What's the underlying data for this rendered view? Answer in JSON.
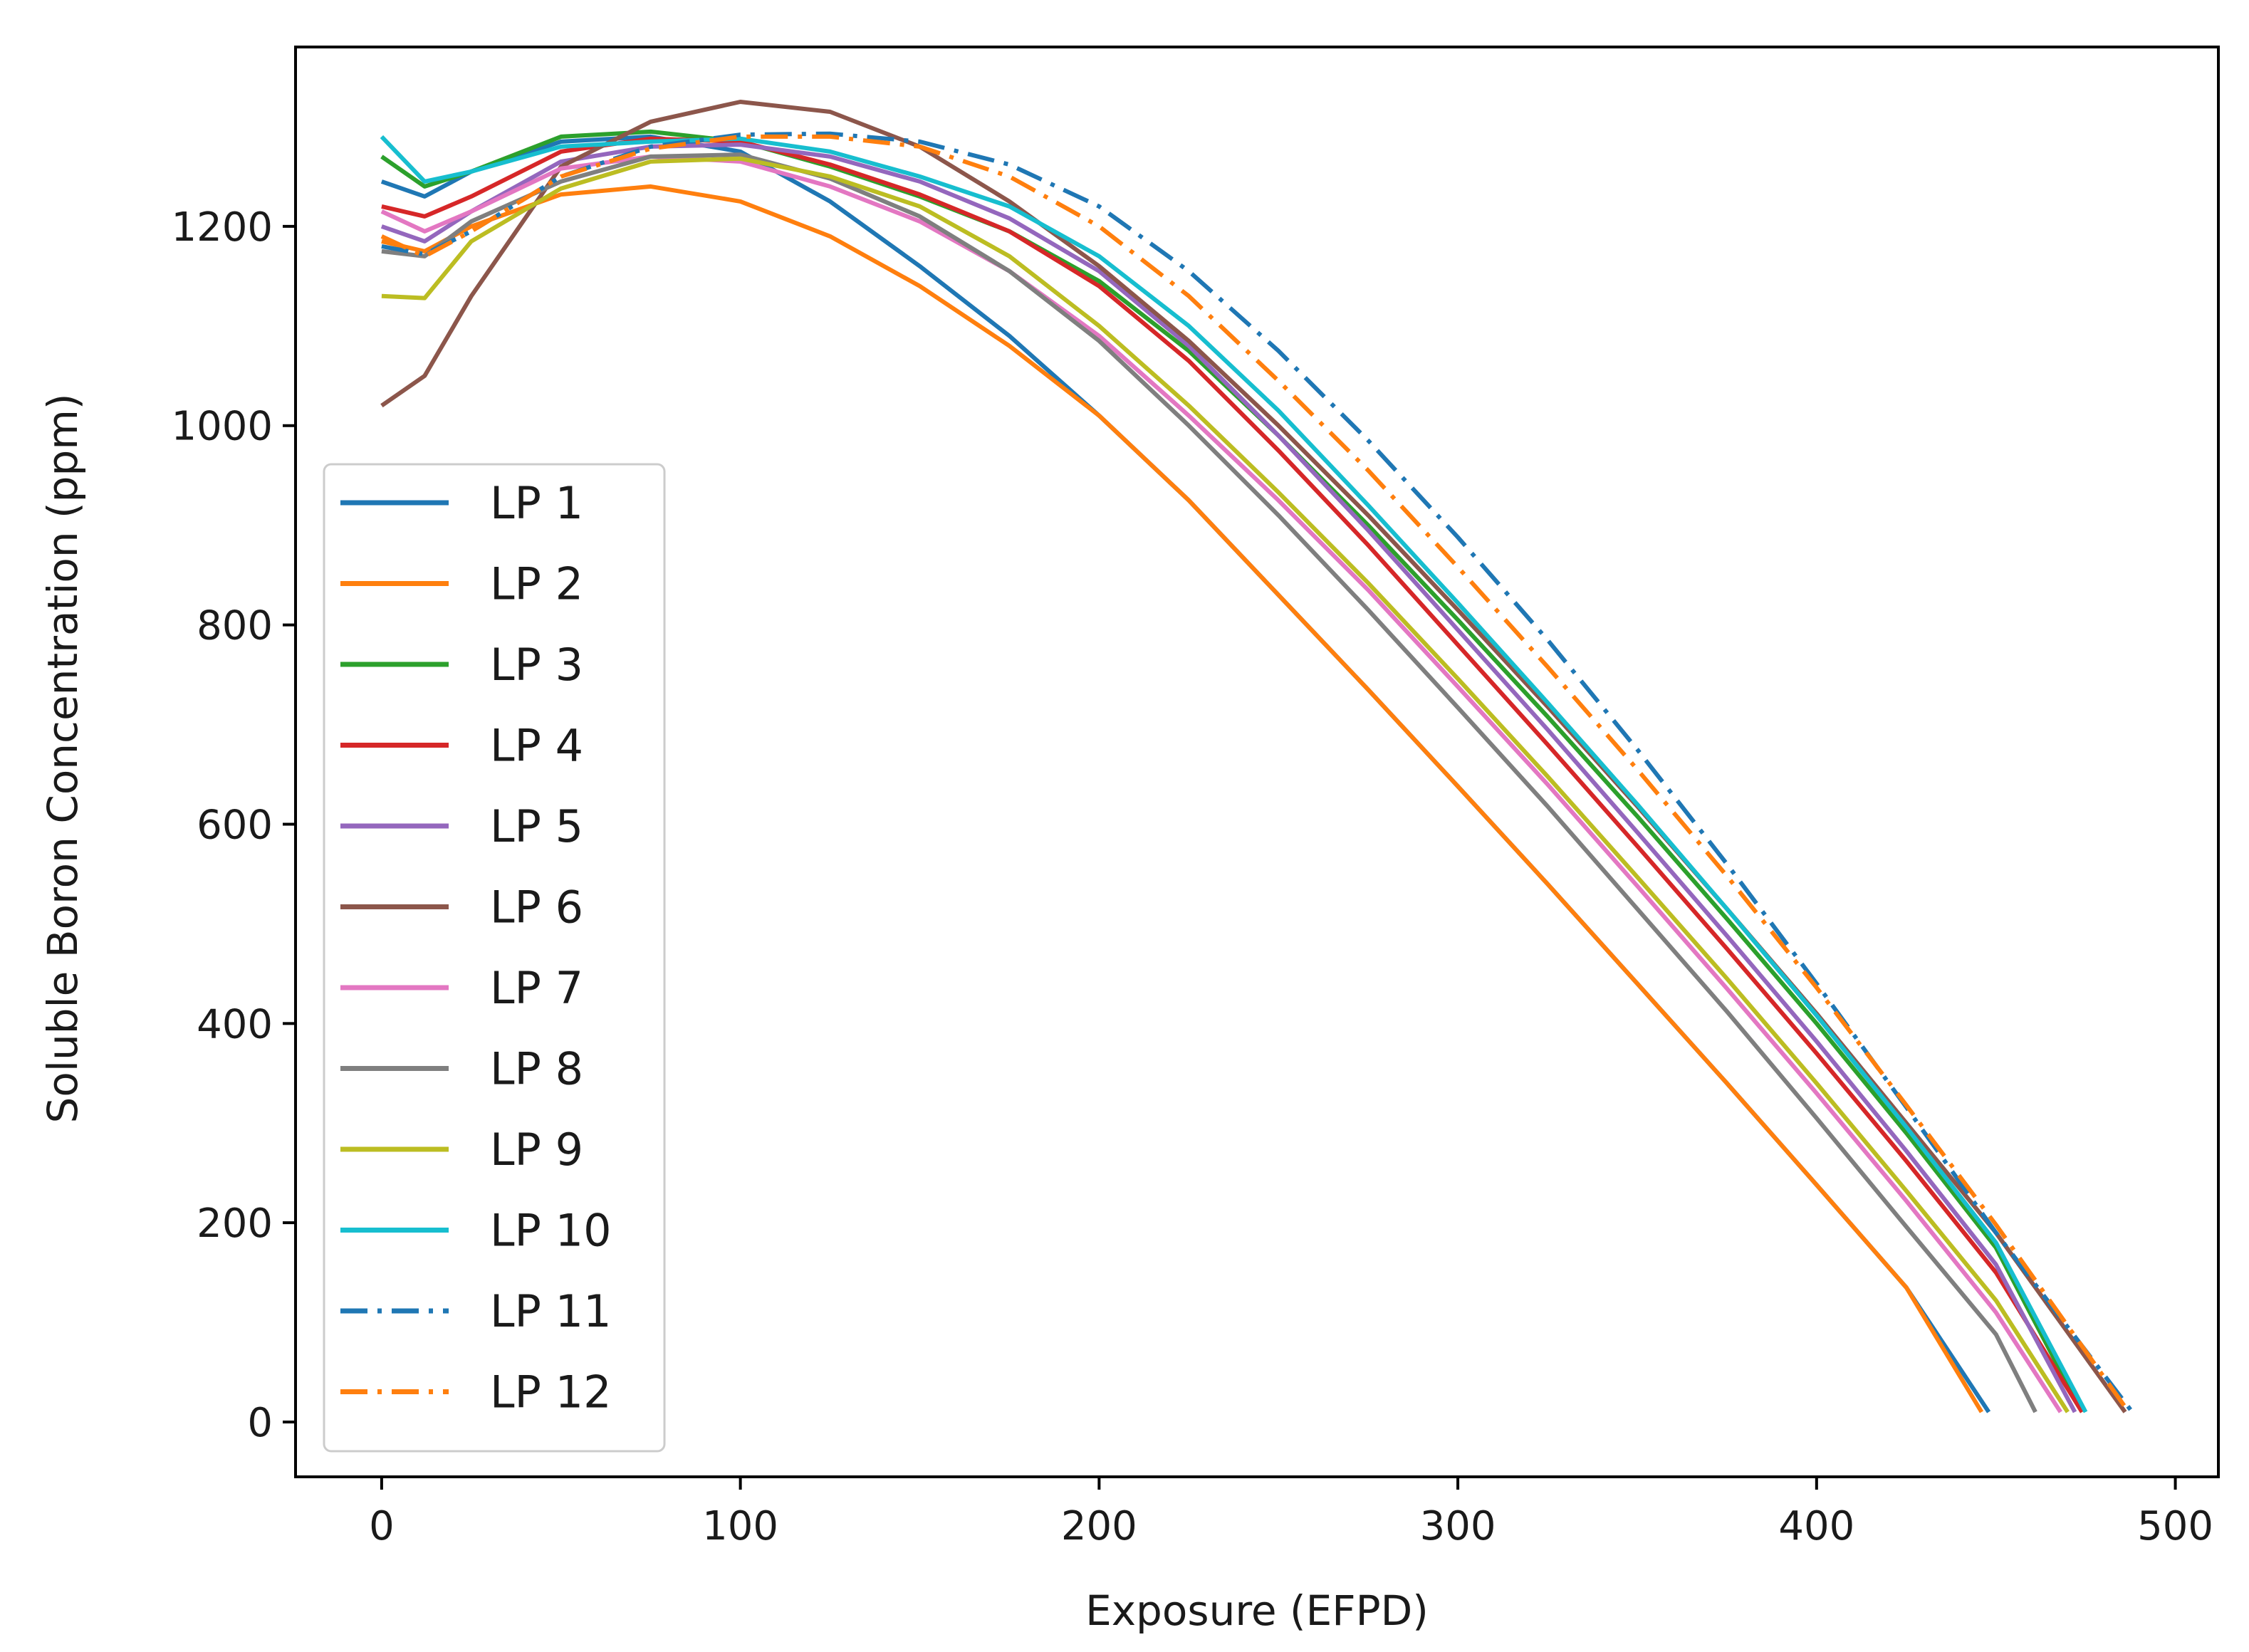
{
  "chart_data": {
    "type": "line",
    "title": "",
    "xlabel": "Exposure (EFPD)",
    "ylabel": "Soluble Boron Concentration (ppm)",
    "xlim": [
      -24,
      512
    ],
    "ylim": [
      -55,
      1380
    ],
    "xticks": [
      0,
      100,
      200,
      300,
      400,
      500
    ],
    "yticks": [
      0,
      200,
      400,
      600,
      800,
      1000,
      1200
    ],
    "grid": false,
    "legend_position": "lower-left",
    "series": [
      {
        "name": "LP 1",
        "color": "#1f77b4",
        "style": "solid",
        "x": [
          0,
          12,
          25,
          50,
          75,
          100,
          125,
          150,
          175,
          200,
          225,
          250,
          275,
          300,
          325,
          350,
          375,
          400,
          425,
          448
        ],
        "y": [
          1245,
          1230,
          1255,
          1285,
          1290,
          1275,
          1225,
          1160,
          1090,
          1010,
          925,
          830,
          735,
          638,
          540,
          440,
          340,
          238,
          135,
          10
        ]
      },
      {
        "name": "LP 2",
        "color": "#ff7f0e",
        "style": "solid",
        "x": [
          0,
          12,
          25,
          50,
          75,
          100,
          125,
          150,
          175,
          200,
          225,
          250,
          275,
          300,
          325,
          350,
          375,
          400,
          425,
          446
        ],
        "y": [
          1185,
          1175,
          1200,
          1232,
          1240,
          1225,
          1190,
          1140,
          1080,
          1010,
          925,
          830,
          735,
          638,
          540,
          440,
          340,
          238,
          135,
          10
        ]
      },
      {
        "name": "LP 3",
        "color": "#2ca02c",
        "style": "solid",
        "x": [
          0,
          12,
          25,
          50,
          75,
          100,
          125,
          150,
          175,
          200,
          225,
          250,
          275,
          300,
          325,
          350,
          375,
          400,
          425,
          450,
          474
        ],
        "y": [
          1270,
          1240,
          1255,
          1290,
          1295,
          1285,
          1260,
          1230,
          1195,
          1145,
          1075,
          990,
          900,
          805,
          708,
          608,
          505,
          400,
          290,
          175,
          10
        ]
      },
      {
        "name": "LP 4",
        "color": "#d62728",
        "style": "solid",
        "x": [
          0,
          12,
          25,
          50,
          75,
          100,
          125,
          150,
          175,
          200,
          225,
          250,
          275,
          300,
          325,
          350,
          375,
          400,
          425,
          450,
          474
        ],
        "y": [
          1220,
          1210,
          1230,
          1275,
          1288,
          1285,
          1262,
          1232,
          1195,
          1140,
          1065,
          975,
          880,
          780,
          680,
          578,
          475,
          370,
          262,
          150,
          10
        ]
      },
      {
        "name": "LP 5",
        "color": "#9467bd",
        "style": "solid",
        "x": [
          0,
          12,
          25,
          50,
          75,
          100,
          125,
          150,
          175,
          200,
          225,
          250,
          275,
          300,
          325,
          350,
          375,
          400,
          425,
          450,
          472
        ],
        "y": [
          1200,
          1185,
          1215,
          1265,
          1280,
          1282,
          1270,
          1245,
          1208,
          1155,
          1080,
          990,
          895,
          795,
          695,
          592,
          488,
          382,
          272,
          158,
          10
        ]
      },
      {
        "name": "LP 6",
        "color": "#8c564b",
        "style": "solid",
        "x": [
          0,
          12,
          25,
          50,
          75,
          100,
          125,
          150,
          175,
          200,
          225,
          250,
          275,
          300,
          325,
          350,
          375,
          400,
          425,
          450,
          486
        ],
        "y": [
          1020,
          1050,
          1130,
          1260,
          1305,
          1325,
          1315,
          1280,
          1225,
          1160,
          1085,
          1000,
          910,
          815,
          718,
          618,
          515,
          410,
          300,
          190,
          10
        ]
      },
      {
        "name": "LP 7",
        "color": "#e377c2",
        "style": "solid",
        "x": [
          0,
          12,
          25,
          50,
          75,
          100,
          125,
          150,
          175,
          200,
          225,
          250,
          275,
          300,
          325,
          350,
          375,
          400,
          425,
          450,
          468
        ],
        "y": [
          1215,
          1195,
          1215,
          1258,
          1270,
          1265,
          1240,
          1205,
          1155,
          1090,
          1010,
          925,
          835,
          738,
          640,
          538,
          435,
          330,
          222,
          110,
          10
        ]
      },
      {
        "name": "LP 8",
        "color": "#7f7f7f",
        "style": "solid",
        "x": [
          0,
          12,
          25,
          50,
          75,
          100,
          125,
          150,
          175,
          200,
          225,
          250,
          275,
          300,
          325,
          350,
          375,
          400,
          425,
          450,
          461
        ],
        "y": [
          1175,
          1170,
          1205,
          1245,
          1270,
          1272,
          1248,
          1210,
          1155,
          1085,
          1000,
          910,
          815,
          717,
          618,
          515,
          412,
          305,
          196,
          88,
          10
        ]
      },
      {
        "name": "LP 9",
        "color": "#bcbd22",
        "style": "solid",
        "x": [
          0,
          12,
          25,
          50,
          75,
          100,
          125,
          150,
          175,
          200,
          225,
          250,
          275,
          300,
          325,
          350,
          375,
          400,
          425,
          450,
          470
        ],
        "y": [
          1130,
          1128,
          1185,
          1238,
          1265,
          1268,
          1250,
          1220,
          1170,
          1100,
          1020,
          933,
          842,
          746,
          648,
          547,
          445,
          340,
          232,
          122,
          10
        ]
      },
      {
        "name": "LP 10",
        "color": "#17becf",
        "style": "solid",
        "x": [
          0,
          12,
          25,
          50,
          75,
          100,
          125,
          150,
          175,
          200,
          225,
          250,
          275,
          300,
          325,
          350,
          375,
          400,
          425,
          450,
          475
        ],
        "y": [
          1290,
          1245,
          1255,
          1280,
          1285,
          1288,
          1275,
          1250,
          1220,
          1170,
          1100,
          1015,
          920,
          822,
          722,
          620,
          515,
          408,
          296,
          180,
          10
        ]
      },
      {
        "name": "LP 11",
        "color": "#1f77b4",
        "style": "dashdot",
        "x": [
          0,
          12,
          25,
          50,
          75,
          100,
          125,
          150,
          175,
          200,
          225,
          250,
          275,
          300,
          325,
          350,
          375,
          400,
          425,
          450,
          488
        ],
        "y": [
          1180,
          1172,
          1195,
          1250,
          1280,
          1292,
          1293,
          1285,
          1262,
          1220,
          1155,
          1075,
          985,
          888,
          785,
          675,
          560,
          440,
          316,
          190,
          10
        ]
      },
      {
        "name": "LP 12",
        "color": "#ff7f0e",
        "style": "dashdot",
        "x": [
          0,
          12,
          25,
          50,
          75,
          100,
          125,
          150,
          175,
          200,
          225,
          250,
          275,
          300,
          325,
          350,
          375,
          400,
          425,
          450,
          487
        ],
        "y": [
          1190,
          1170,
          1195,
          1250,
          1278,
          1290,
          1290,
          1280,
          1250,
          1200,
          1130,
          1045,
          955,
          858,
          758,
          655,
          548,
          436,
          318,
          198,
          10
        ]
      }
    ]
  }
}
